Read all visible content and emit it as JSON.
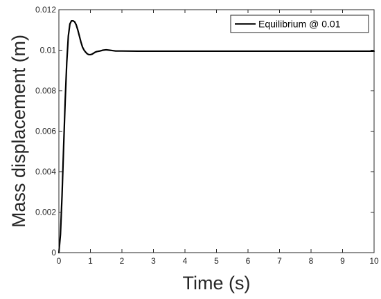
{
  "chart_data": {
    "type": "line",
    "title": "",
    "xlabel": "Time (s)",
    "ylabel": "Mass displacement (m)",
    "xlim": [
      0,
      10
    ],
    "ylim": [
      0,
      0.012
    ],
    "x_ticks": [
      "0",
      "1",
      "2",
      "3",
      "4",
      "5",
      "6",
      "7",
      "8",
      "9",
      "10"
    ],
    "y_ticks": [
      "0",
      "0.002",
      "0.004",
      "0.006",
      "0.008",
      "0.01",
      "0.012"
    ],
    "grid": false,
    "legend_position": "top-right",
    "series": [
      {
        "name": "Equilibrium @ 0.01",
        "color": "#000000",
        "x": [
          0,
          0.05,
          0.1,
          0.15,
          0.2,
          0.25,
          0.3,
          0.35,
          0.4,
          0.45,
          0.5,
          0.55,
          0.6,
          0.65,
          0.7,
          0.75,
          0.8,
          0.85,
          0.9,
          0.95,
          1.0,
          1.05,
          1.1,
          1.15,
          1.2,
          1.3,
          1.4,
          1.5,
          1.6,
          1.7,
          1.8,
          2.0,
          2.5,
          3,
          4,
          5,
          6,
          7,
          8,
          9,
          10
        ],
        "y": [
          0,
          0.0009,
          0.0028,
          0.0052,
          0.0075,
          0.0094,
          0.0107,
          0.0113,
          0.01145,
          0.01145,
          0.0114,
          0.01125,
          0.011,
          0.0107,
          0.0104,
          0.01015,
          0.01,
          0.0099,
          0.00982,
          0.00978,
          0.00978,
          0.0098,
          0.00985,
          0.0099,
          0.00993,
          0.00996,
          0.01,
          0.01002,
          0.01,
          0.00998,
          0.00996,
          0.00996,
          0.00995,
          0.00995,
          0.00995,
          0.00995,
          0.00995,
          0.00995,
          0.00995,
          0.00995,
          0.00995
        ]
      }
    ]
  }
}
